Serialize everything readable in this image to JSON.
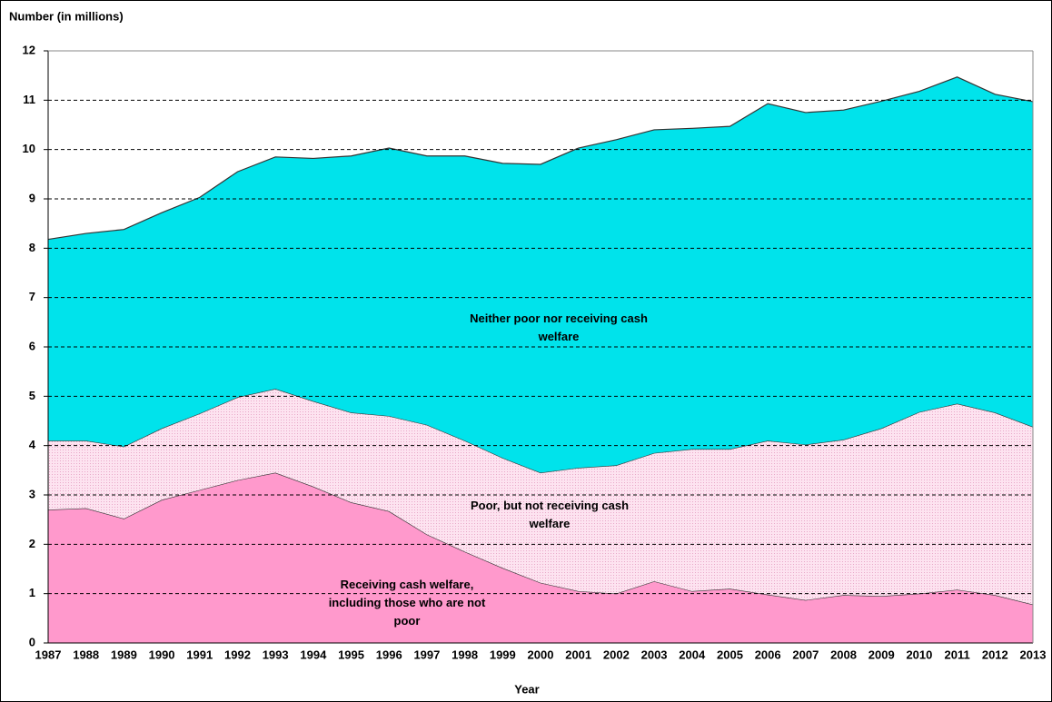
{
  "chart_data": {
    "type": "stacked_area",
    "y_axis_label": "Number (in millions)",
    "x_axis_label": "Year",
    "categories": [
      "1987",
      "1988",
      "1989",
      "1990",
      "1991",
      "1992",
      "1993",
      "1994",
      "1995",
      "1996",
      "1997",
      "1998",
      "1999",
      "2000",
      "2001",
      "2002",
      "2003",
      "2004",
      "2005",
      "2006",
      "2007",
      "2008",
      "2009",
      "2010",
      "2011",
      "2012",
      "2013"
    ],
    "series": [
      {
        "name": "Receiving cash welfare, including those who are not poor",
        "color": "#ff99cc",
        "values": [
          2.7,
          2.73,
          2.52,
          2.9,
          3.1,
          3.3,
          3.45,
          3.17,
          2.85,
          2.67,
          2.2,
          1.85,
          1.52,
          1.22,
          1.05,
          1.0,
          1.25,
          1.05,
          1.1,
          0.98,
          0.87,
          0.97,
          0.95,
          1.0,
          1.08,
          0.97,
          0.78
        ]
      },
      {
        "name": "Poor, but not receiving cash welfare",
        "color": "#fde3f0",
        "values": [
          1.4,
          1.37,
          1.46,
          1.45,
          1.55,
          1.68,
          1.7,
          1.73,
          1.82,
          1.93,
          2.22,
          2.25,
          2.23,
          2.23,
          2.5,
          2.6,
          2.6,
          2.88,
          2.83,
          3.12,
          3.15,
          3.15,
          3.4,
          3.68,
          3.77,
          3.7,
          3.6
        ]
      },
      {
        "name": "Neither poor nor receiving cash welfare",
        "color": "#00e3eb",
        "values": [
          4.08,
          4.2,
          4.4,
          4.37,
          4.38,
          4.57,
          4.7,
          4.92,
          5.2,
          5.43,
          5.45,
          5.77,
          5.97,
          6.25,
          6.48,
          6.6,
          6.55,
          6.5,
          6.54,
          6.83,
          6.73,
          6.68,
          6.63,
          6.5,
          6.62,
          6.45,
          6.59
        ]
      }
    ],
    "ylim": [
      0,
      12
    ],
    "yticks": [
      0,
      1,
      2,
      3,
      4,
      5,
      6,
      7,
      8,
      9,
      10,
      11,
      12
    ],
    "grid": true
  }
}
